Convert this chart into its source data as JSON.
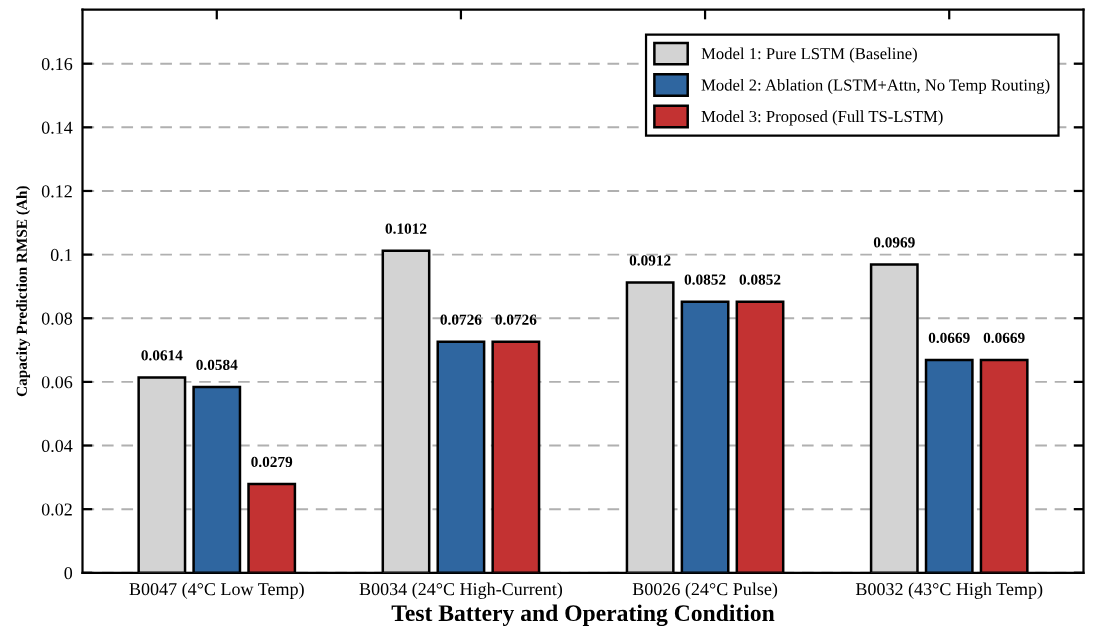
{
  "chart_data": {
    "type": "bar",
    "xlabel": "Test Battery and Operating Condition",
    "ylabel": "Capacity Prediction RMSE (Ah)",
    "categories": [
      "B0047 (4°C Low Temp)",
      "B0034 (24°C High-Current)",
      "B0026 (24°C Pulse)",
      "B0032 (43°C High Temp)"
    ],
    "series": [
      {
        "name": "Model 1: Pure LSTM (Baseline)",
        "color": "#d3d3d3",
        "values": [
          0.0614,
          0.1012,
          0.0912,
          0.0969
        ]
      },
      {
        "name": "Model 2: Ablation (LSTM+Attn, No Temp Routing)",
        "color": "#2f66a0",
        "values": [
          0.0584,
          0.0726,
          0.0852,
          0.0669
        ]
      },
      {
        "name": "Model 3: Proposed (Full TS-LSTM)",
        "color": "#c33232",
        "values": [
          0.0279,
          0.0726,
          0.0852,
          0.0669
        ]
      }
    ],
    "ylim": [
      0,
      0.177
    ],
    "yticks": [
      0,
      0.02,
      0.04,
      0.06,
      0.08,
      0.1,
      0.12,
      0.14,
      0.16
    ],
    "grid": "y",
    "legend": "top right",
    "data_labels": true
  }
}
